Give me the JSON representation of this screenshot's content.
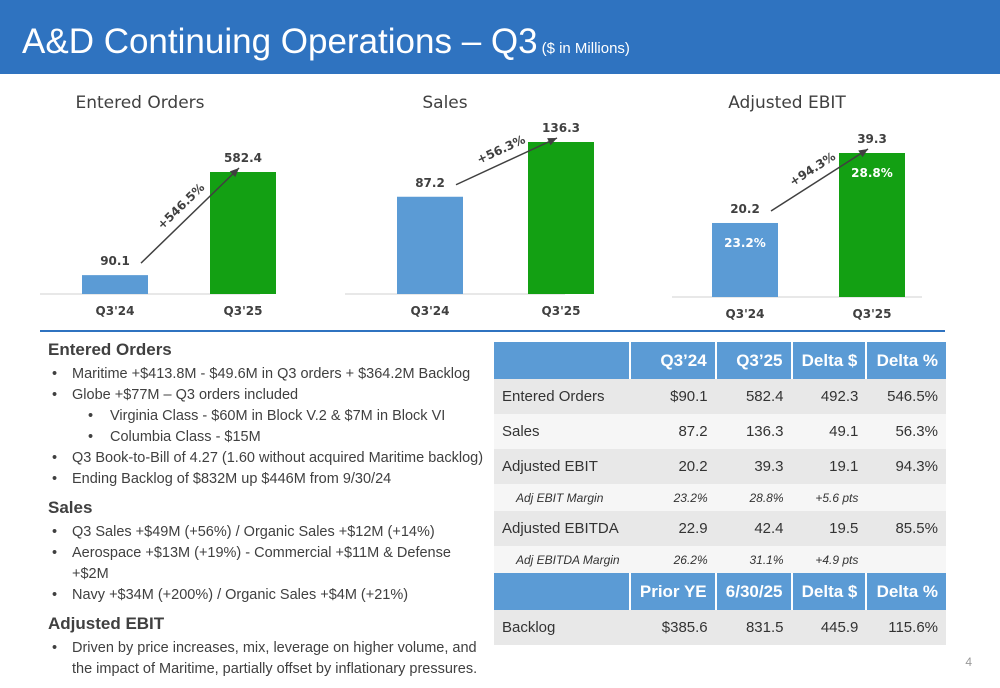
{
  "header": {
    "title": "A&D Continuing Operations – Q3",
    "subtitle": "($ in Millions)"
  },
  "colors": {
    "banner": "#2f73c0",
    "bar_prior": "#5b9bd5",
    "bar_current": "#13a013",
    "table_header": "#5b9bd5"
  },
  "chart_data": [
    {
      "type": "bar",
      "title": "Entered Orders",
      "categories": [
        "Q3'24",
        "Q3'25"
      ],
      "values": [
        90.1,
        582.4
      ],
      "value_labels": [
        "90.1",
        "582.4"
      ],
      "inner_labels": [
        "",
        ""
      ],
      "change": "+546.5%"
    },
    {
      "type": "bar",
      "title": "Sales",
      "categories": [
        "Q3'24",
        "Q3'25"
      ],
      "values": [
        87.2,
        136.3
      ],
      "value_labels": [
        "87.2",
        "136.3"
      ],
      "inner_labels": [
        "",
        ""
      ],
      "change": "+56.3%"
    },
    {
      "type": "bar",
      "title": "Adjusted EBIT",
      "categories": [
        "Q3'24",
        "Q3'25"
      ],
      "values": [
        20.2,
        39.3
      ],
      "value_labels": [
        "20.2",
        "39.3"
      ],
      "inner_labels": [
        "23.2%",
        "28.8%"
      ],
      "change": "+94.3%"
    }
  ],
  "sections": [
    {
      "heading": "Entered Orders",
      "bullets": [
        {
          "text": "Maritime +$413.8M - $49.6M in Q3 orders + $364.2M Backlog",
          "sub": []
        },
        {
          "text": "Globe +$77M – Q3 orders included",
          "sub": [
            "Virginia Class - $60M in Block V.2 & $7M in Block VI",
            "Columbia Class - $15M"
          ]
        },
        {
          "text": "Q3 Book-to-Bill of 4.27 (1.60 without acquired Maritime backlog)",
          "sub": []
        },
        {
          "text": "Ending Backlog of $832M up $446M from 9/30/24",
          "sub": []
        }
      ]
    },
    {
      "heading": "Sales",
      "bullets": [
        {
          "text": "Q3 Sales +$49M (+56%) / Organic Sales +$12M (+14%)",
          "sub": []
        },
        {
          "text": "Aerospace +$13M (+19%) - Commercial +$11M & Defense +$2M",
          "sub": []
        },
        {
          "text": "Navy +$34M (+200%) / Organic Sales +$4M (+21%)",
          "sub": []
        }
      ]
    },
    {
      "heading": "Adjusted EBIT",
      "bullets": [
        {
          "text": "Driven by price increases, mix, leverage on higher volume, and the impact of Maritime, partially offset by inflationary pressures.",
          "sub": []
        }
      ]
    }
  ],
  "table": {
    "headers": [
      "",
      "Q3’24",
      "Q3’25",
      "Delta $",
      "Delta %"
    ],
    "rows": [
      {
        "kind": "r",
        "cells": [
          "Entered Orders",
          "$90.1",
          "582.4",
          "492.3",
          "546.5%"
        ]
      },
      {
        "kind": "r",
        "cells": [
          "Sales",
          "87.2",
          "136.3",
          "49.1",
          "56.3%"
        ]
      },
      {
        "kind": "r",
        "cells": [
          "Adjusted EBIT",
          "20.2",
          "39.3",
          "19.1",
          "94.3%"
        ]
      },
      {
        "kind": "m",
        "cells": [
          "Adj EBIT Margin",
          "23.2%",
          "28.8%",
          "+5.6 pts",
          ""
        ]
      },
      {
        "kind": "r",
        "cells": [
          "Adjusted EBITDA",
          "22.9",
          "42.4",
          "19.5",
          "85.5%"
        ]
      },
      {
        "kind": "m",
        "cells": [
          "Adj EBITDA Margin",
          "26.2%",
          "31.1%",
          "+4.9 pts",
          ""
        ]
      }
    ],
    "headers2": [
      "",
      "Prior YE",
      "6/30/25",
      "Delta $",
      "Delta %"
    ],
    "rows2": [
      {
        "kind": "r",
        "cells": [
          "Backlog",
          "$385.6",
          "831.5",
          "445.9",
          "115.6%"
        ]
      }
    ]
  },
  "page_number": "4"
}
